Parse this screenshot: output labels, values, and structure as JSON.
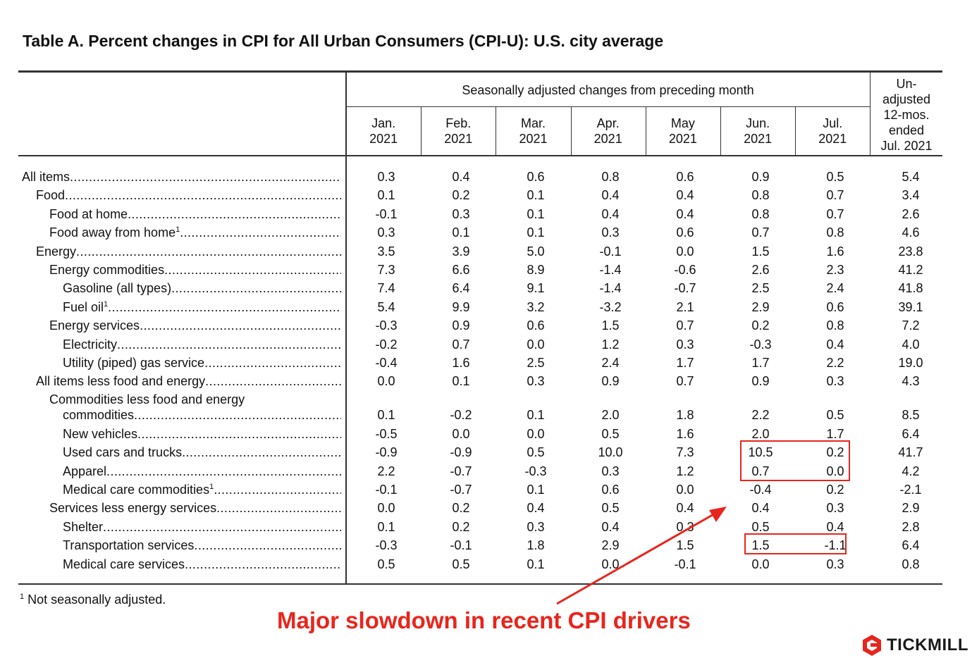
{
  "title": "Table A. Percent changes in CPI for All Urban Consumers (CPI-U): U.S. city average",
  "header": {
    "group_label": "Seasonally adjusted changes from preceding month",
    "months": [
      [
        "Jan.",
        "2021"
      ],
      [
        "Feb.",
        "2021"
      ],
      [
        "Mar.",
        "2021"
      ],
      [
        "Apr.",
        "2021"
      ],
      [
        "May",
        "2021"
      ],
      [
        "Jun.",
        "2021"
      ],
      [
        "Jul.",
        "2021"
      ]
    ],
    "unadjusted_label": [
      "Un-",
      "adjusted",
      "12-mos.",
      "ended",
      "Jul. 2021"
    ]
  },
  "chart_data": {
    "type": "table",
    "title": "Table A. Percent changes in CPI for All Urban Consumers (CPI-U): U.S. city average",
    "columns": [
      "Jan. 2021",
      "Feb. 2021",
      "Mar. 2021",
      "Apr. 2021",
      "May 2021",
      "Jun. 2021",
      "Jul. 2021",
      "Un-adjusted 12-mos. ended Jul. 2021"
    ],
    "rows": [
      {
        "label": "All items",
        "indent": 0,
        "values": [
          "0.3",
          "0.4",
          "0.6",
          "0.8",
          "0.6",
          "0.9",
          "0.5",
          "5.4"
        ]
      },
      {
        "label": "Food",
        "indent": 1,
        "values": [
          "0.1",
          "0.2",
          "0.1",
          "0.4",
          "0.4",
          "0.8",
          "0.7",
          "3.4"
        ]
      },
      {
        "label": "Food at home",
        "indent": 2,
        "values": [
          "-0.1",
          "0.3",
          "0.1",
          "0.4",
          "0.4",
          "0.8",
          "0.7",
          "2.6"
        ]
      },
      {
        "label": "Food away from home",
        "sup": "1",
        "indent": 2,
        "values": [
          "0.3",
          "0.1",
          "0.1",
          "0.3",
          "0.6",
          "0.7",
          "0.8",
          "4.6"
        ]
      },
      {
        "label": "Energy",
        "indent": 1,
        "values": [
          "3.5",
          "3.9",
          "5.0",
          "-0.1",
          "0.0",
          "1.5",
          "1.6",
          "23.8"
        ]
      },
      {
        "label": "Energy commodities",
        "indent": 2,
        "values": [
          "7.3",
          "6.6",
          "8.9",
          "-1.4",
          "-0.6",
          "2.6",
          "2.3",
          "41.2"
        ]
      },
      {
        "label": "Gasoline (all types)",
        "indent": 3,
        "values": [
          "7.4",
          "6.4",
          "9.1",
          "-1.4",
          "-0.7",
          "2.5",
          "2.4",
          "41.8"
        ]
      },
      {
        "label": "Fuel oil",
        "sup": "1",
        "indent": 3,
        "values": [
          "5.4",
          "9.9",
          "3.2",
          "-3.2",
          "2.1",
          "2.9",
          "0.6",
          "39.1"
        ]
      },
      {
        "label": "Energy services",
        "indent": 2,
        "values": [
          "-0.3",
          "0.9",
          "0.6",
          "1.5",
          "0.7",
          "0.2",
          "0.8",
          "7.2"
        ]
      },
      {
        "label": "Electricity",
        "indent": 3,
        "values": [
          "-0.2",
          "0.7",
          "0.0",
          "1.2",
          "0.3",
          "-0.3",
          "0.4",
          "4.0"
        ]
      },
      {
        "label": "Utility (piped) gas service",
        "indent": 3,
        "values": [
          "-0.4",
          "1.6",
          "2.5",
          "2.4",
          "1.7",
          "1.7",
          "2.2",
          "19.0"
        ]
      },
      {
        "label": "All items less food and energy",
        "indent": 1,
        "values": [
          "0.0",
          "0.1",
          "0.3",
          "0.9",
          "0.7",
          "0.9",
          "0.3",
          "4.3"
        ]
      },
      {
        "label": "commodities",
        "label_top": "Commodities less food and energy",
        "indent": 3,
        "top_indent": 2,
        "values": [
          "0.1",
          "-0.2",
          "0.1",
          "2.0",
          "1.8",
          "2.2",
          "0.5",
          "8.5"
        ]
      },
      {
        "label": "New vehicles",
        "indent": 3,
        "values": [
          "-0.5",
          "0.0",
          "0.0",
          "0.5",
          "1.6",
          "2.0",
          "1.7",
          "6.4"
        ]
      },
      {
        "label": "Used cars and trucks",
        "indent": 3,
        "values": [
          "-0.9",
          "-0.9",
          "0.5",
          "10.0",
          "7.3",
          "10.5",
          "0.2",
          "41.7"
        ]
      },
      {
        "label": "Apparel",
        "indent": 3,
        "values": [
          "2.2",
          "-0.7",
          "-0.3",
          "0.3",
          "1.2",
          "0.7",
          "0.0",
          "4.2"
        ]
      },
      {
        "label": "Medical care commodities",
        "sup": "1",
        "indent": 3,
        "values": [
          "-0.1",
          "-0.7",
          "0.1",
          "0.6",
          "0.0",
          "-0.4",
          "0.2",
          "-2.1"
        ]
      },
      {
        "label": "Services less energy services",
        "indent": 2,
        "values": [
          "0.0",
          "0.2",
          "0.4",
          "0.5",
          "0.4",
          "0.4",
          "0.3",
          "2.9"
        ]
      },
      {
        "label": "Shelter",
        "indent": 3,
        "values": [
          "0.1",
          "0.2",
          "0.3",
          "0.4",
          "0.3",
          "0.5",
          "0.4",
          "2.8"
        ]
      },
      {
        "label": "Transportation services",
        "indent": 3,
        "values": [
          "-0.3",
          "-0.1",
          "1.8",
          "2.9",
          "1.5",
          "1.5",
          "-1.1",
          "6.4"
        ]
      },
      {
        "label": "Medical care services",
        "indent": 3,
        "values": [
          "0.5",
          "0.5",
          "0.1",
          "0.0",
          "-0.1",
          "0.0",
          "0.3",
          "0.8"
        ]
      }
    ],
    "highlights": [
      {
        "rows": [
          "Used cars and trucks",
          "Apparel"
        ],
        "columns": [
          "Jun. 2021",
          "Jul. 2021"
        ]
      },
      {
        "rows": [
          "Transportation services"
        ],
        "columns": [
          "Jun. 2021",
          "Jul. 2021"
        ]
      }
    ]
  },
  "footnote": {
    "sup": "1",
    "text": "Not seasonally adjusted."
  },
  "annotation": "Major slowdown in recent CPI drivers",
  "colors": {
    "highlight": "#e8251c",
    "rules": "#333333"
  },
  "logo": {
    "text": "TICKMILL",
    "icon": "tickmill-hexagon-icon"
  }
}
